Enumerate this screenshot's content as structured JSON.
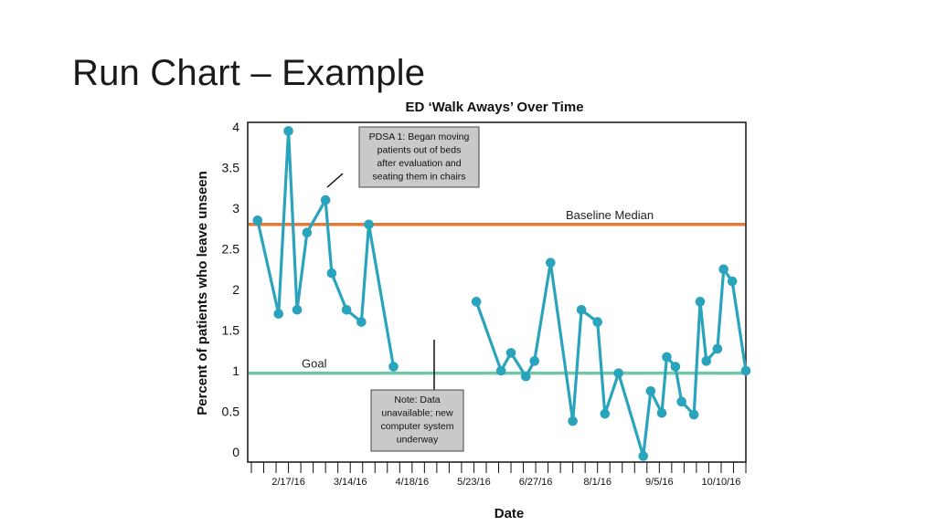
{
  "slide": {
    "title": "Run Chart – Example"
  },
  "chart_data": {
    "type": "line",
    "title": "ED ‘Walk Aways’ Over Time",
    "xlabel": "Date",
    "ylabel": "Percent of patients who leave unseen",
    "ylim": [
      0,
      4
    ],
    "y_ticks": [
      "0",
      "0.5",
      "1",
      "1.5",
      "2",
      "2.5",
      "3",
      "3.5",
      "4"
    ],
    "x_tick_labels": [
      {
        "label": "2/17/16",
        "x": 3
      },
      {
        "label": "3/14/16",
        "x": 8
      },
      {
        "label": "4/18/16",
        "x": 13
      },
      {
        "label": "5/23/16",
        "x": 18
      },
      {
        "label": "6/27/16",
        "x": 23
      },
      {
        "label": "8/1/16",
        "x": 28
      },
      {
        "label": "9/5/16",
        "x": 33
      },
      {
        "label": "10/10/16",
        "x": 38
      }
    ],
    "x_range": [
      0,
      40
    ],
    "grid": false,
    "series": [
      {
        "points": [
          [
            0.5,
            2.85
          ],
          [
            2.2,
            1.7
          ],
          [
            3.0,
            3.95
          ],
          [
            3.7,
            1.75
          ],
          [
            4.5,
            2.7
          ],
          [
            6.0,
            3.1
          ],
          [
            6.5,
            2.2
          ],
          [
            7.7,
            1.75
          ],
          [
            8.9,
            1.6
          ],
          [
            9.5,
            2.8
          ],
          [
            11.5,
            1.05
          ],
          [
            null,
            null
          ],
          [
            18.2,
            1.85
          ],
          [
            20.2,
            1.0
          ],
          [
            21.0,
            1.22
          ],
          [
            22.2,
            0.93
          ],
          [
            22.9,
            1.12
          ],
          [
            24.2,
            2.33
          ],
          [
            26.0,
            0.38
          ],
          [
            26.7,
            1.75
          ],
          [
            28.0,
            1.6
          ],
          [
            28.6,
            0.47
          ],
          [
            29.7,
            0.97
          ],
          [
            31.7,
            -0.05
          ],
          [
            32.3,
            0.75
          ],
          [
            33.2,
            0.48
          ],
          [
            33.6,
            1.17
          ],
          [
            34.3,
            1.05
          ],
          [
            34.8,
            0.62
          ],
          [
            35.8,
            0.46
          ],
          [
            36.3,
            1.85
          ],
          [
            36.8,
            1.12
          ],
          [
            37.7,
            1.27
          ],
          [
            38.2,
            2.25
          ],
          [
            38.9,
            2.1
          ],
          [
            40.0,
            1.0
          ]
        ]
      }
    ],
    "reference_lines": [
      {
        "label": "Baseline Median",
        "y": 2.8,
        "color": "#e07b39"
      },
      {
        "label": "Goal",
        "y": 0.97,
        "color": "#6fc7a6"
      }
    ],
    "annotations": [
      {
        "lines": [
          "PDSA 1: Began moving",
          "patients out of beds",
          "after evaluation and",
          "seating them in chairs"
        ],
        "pointer_x": 6.5,
        "pointer_y": 3.15
      },
      {
        "lines": [
          "Note: Data",
          "unavailable; new",
          "computer system",
          "underway"
        ],
        "pointer_x": 15.4,
        "pointer_y": 1.35
      }
    ],
    "line_color": "#2aa3bd"
  }
}
